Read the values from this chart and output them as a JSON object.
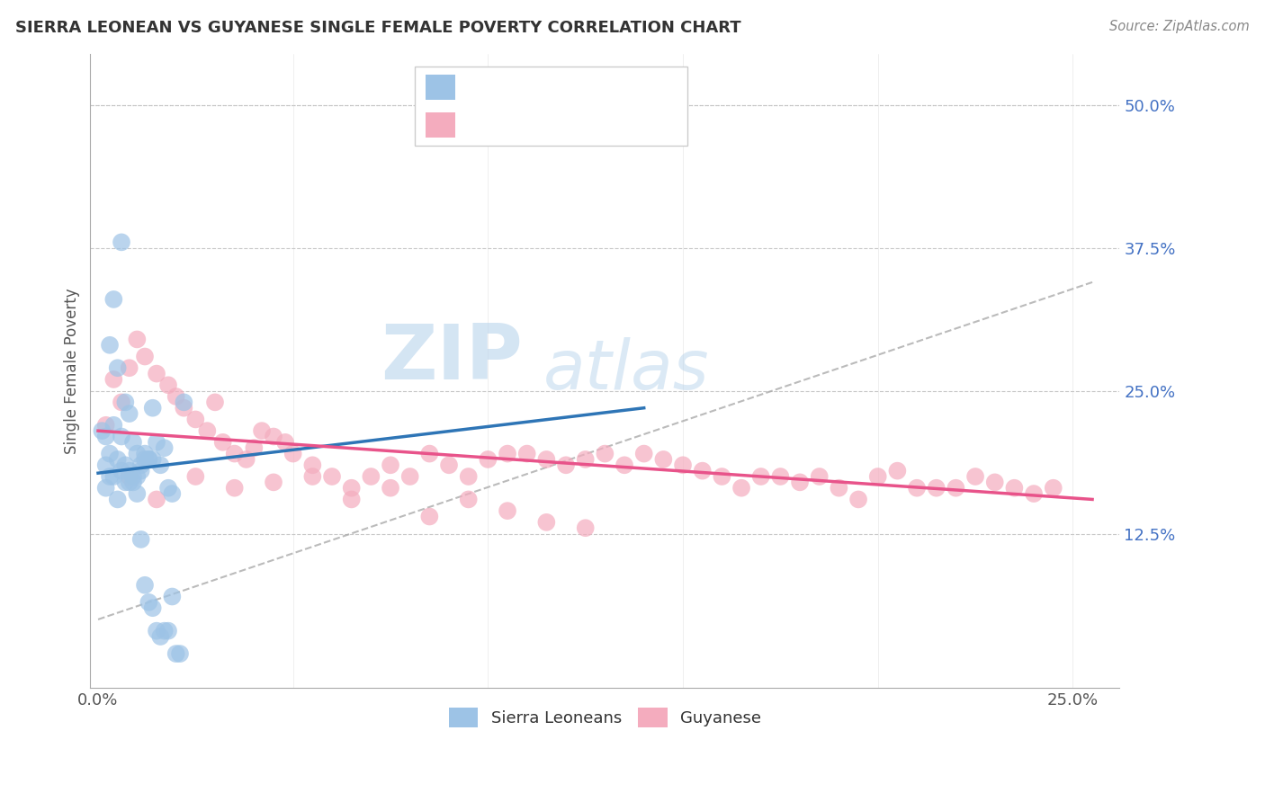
{
  "title": "SIERRA LEONEAN VS GUYANESE SINGLE FEMALE POVERTY CORRELATION CHART",
  "source": "Source: ZipAtlas.com",
  "ylabel": "Single Female Poverty",
  "xlim": [
    -0.002,
    0.262
  ],
  "ylim": [
    -0.01,
    0.545
  ],
  "y_ticks_right": [
    0.0,
    0.125,
    0.25,
    0.375,
    0.5
  ],
  "y_tick_labels_right": [
    "",
    "12.5%",
    "25.0%",
    "37.5%",
    "50.0%"
  ],
  "color_sl": "#9DC3E6",
  "color_gu": "#F4ACBE",
  "color_sl_line": "#2E75B6",
  "color_gu_line": "#E8538A",
  "color_dashed": "#AAAAAA",
  "sl_scatter_x": [
    0.002,
    0.003,
    0.004,
    0.005,
    0.006,
    0.007,
    0.008,
    0.009,
    0.01,
    0.011,
    0.012,
    0.013,
    0.014,
    0.015,
    0.016,
    0.017,
    0.018,
    0.019,
    0.002,
    0.003,
    0.004,
    0.005,
    0.006,
    0.007,
    0.008,
    0.009,
    0.01,
    0.011,
    0.012,
    0.013,
    0.001,
    0.002,
    0.003,
    0.004,
    0.005,
    0.006,
    0.007,
    0.008,
    0.009,
    0.01,
    0.011,
    0.012,
    0.013,
    0.014,
    0.015,
    0.016,
    0.017,
    0.018,
    0.019,
    0.02,
    0.021,
    0.022,
    0.014
  ],
  "sl_scatter_y": [
    0.185,
    0.195,
    0.22,
    0.19,
    0.21,
    0.17,
    0.18,
    0.175,
    0.195,
    0.185,
    0.19,
    0.19,
    0.19,
    0.205,
    0.185,
    0.2,
    0.165,
    0.16,
    0.165,
    0.175,
    0.175,
    0.155,
    0.18,
    0.185,
    0.17,
    0.205,
    0.175,
    0.18,
    0.195,
    0.19,
    0.215,
    0.21,
    0.29,
    0.33,
    0.27,
    0.38,
    0.24,
    0.23,
    0.17,
    0.16,
    0.12,
    0.08,
    0.065,
    0.06,
    0.04,
    0.035,
    0.04,
    0.04,
    0.07,
    0.02,
    0.02,
    0.24,
    0.235
  ],
  "gu_scatter_x": [
    0.002,
    0.004,
    0.006,
    0.008,
    0.01,
    0.012,
    0.015,
    0.018,
    0.02,
    0.022,
    0.025,
    0.028,
    0.03,
    0.032,
    0.035,
    0.038,
    0.04,
    0.042,
    0.045,
    0.048,
    0.05,
    0.055,
    0.06,
    0.065,
    0.07,
    0.075,
    0.08,
    0.085,
    0.09,
    0.095,
    0.1,
    0.105,
    0.11,
    0.115,
    0.12,
    0.125,
    0.13,
    0.135,
    0.14,
    0.145,
    0.15,
    0.155,
    0.16,
    0.165,
    0.17,
    0.175,
    0.18,
    0.185,
    0.19,
    0.195,
    0.2,
    0.205,
    0.21,
    0.215,
    0.22,
    0.225,
    0.23,
    0.235,
    0.24,
    0.245,
    0.008,
    0.015,
    0.025,
    0.035,
    0.045,
    0.055,
    0.065,
    0.075,
    0.085,
    0.095,
    0.105,
    0.115,
    0.125
  ],
  "gu_scatter_y": [
    0.22,
    0.26,
    0.24,
    0.27,
    0.295,
    0.28,
    0.265,
    0.255,
    0.245,
    0.235,
    0.225,
    0.215,
    0.24,
    0.205,
    0.195,
    0.19,
    0.2,
    0.215,
    0.21,
    0.205,
    0.195,
    0.185,
    0.175,
    0.165,
    0.175,
    0.185,
    0.175,
    0.195,
    0.185,
    0.175,
    0.19,
    0.195,
    0.195,
    0.19,
    0.185,
    0.19,
    0.195,
    0.185,
    0.195,
    0.19,
    0.185,
    0.18,
    0.175,
    0.165,
    0.175,
    0.175,
    0.17,
    0.175,
    0.165,
    0.155,
    0.175,
    0.18,
    0.165,
    0.165,
    0.165,
    0.175,
    0.17,
    0.165,
    0.16,
    0.165,
    0.175,
    0.155,
    0.175,
    0.165,
    0.17,
    0.175,
    0.155,
    0.165,
    0.14,
    0.155,
    0.145,
    0.135,
    0.13
  ],
  "sl_line_x": [
    0.0,
    0.14
  ],
  "sl_line_y": [
    0.178,
    0.235
  ],
  "gu_line_x": [
    0.0,
    0.255
  ],
  "gu_line_y": [
    0.215,
    0.155
  ],
  "dashed_line_x": [
    0.0,
    0.255
  ],
  "dashed_line_y": [
    0.05,
    0.345
  ],
  "watermark_zip": "ZIP",
  "watermark_atlas": "atlas",
  "text_color_blue": "#4472C4",
  "text_color_dark": "#404040"
}
